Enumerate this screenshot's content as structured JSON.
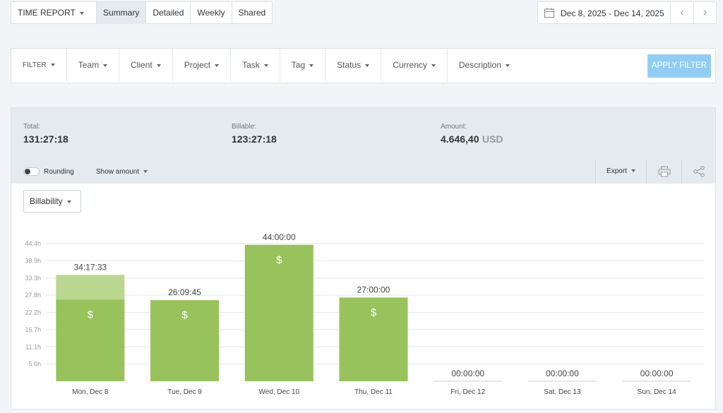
{
  "tabs": {
    "report": "TIME REPORT",
    "items": [
      "Summary",
      "Detailed",
      "Weekly",
      "Shared"
    ]
  },
  "date_range": "Dec 8, 2025 - Dec 14, 2025",
  "filters": {
    "label": "FILTER",
    "items": [
      "Team",
      "Client",
      "Project",
      "Task",
      "Tag",
      "Status",
      "Currency",
      "Description"
    ],
    "apply": "APPLY FILTER"
  },
  "summary": {
    "total_label": "Total:",
    "total": "131:27:18",
    "billable_label": "Billable:",
    "billable": "123:27:18",
    "amount_label": "Amount:",
    "amount": "4.646,40",
    "currency": "USD"
  },
  "toolbar": {
    "rounding": "Rounding",
    "show_amount": "Show amount",
    "export": "Export"
  },
  "group_by": "Billability",
  "chart_data": {
    "type": "stacked-bar",
    "categories": [
      "Mon, Dec 8",
      "Tue, Dec 9",
      "Wed, Dec 10",
      "Thu, Dec 11",
      "Fri, Dec 12",
      "Sat, Dec 13",
      "Sun, Dec 14"
    ],
    "series": [
      {
        "color": "#97c25c",
        "values": [
          26.2925,
          26.1625,
          44,
          27,
          0,
          0,
          0
        ]
      },
      {
        "color": "#b9d78e",
        "values": [
          8,
          0,
          0,
          0,
          0,
          0,
          0
        ]
      }
    ],
    "totals": {
      "values": [
        34.2925,
        26.1625,
        44,
        27,
        0,
        0,
        0
      ],
      "value_labels": [
        "34:17:33",
        "26:09:45",
        "44:00:00",
        "27:00:00",
        "00:00:00",
        "00:00:00",
        "00:00:00"
      ]
    },
    "billable_symbol": "$",
    "ylim": [
      0,
      44.4
    ],
    "yticks": [
      {
        "value": 5.55,
        "label": "5.6h"
      },
      {
        "value": 11.1,
        "label": "11.1h"
      },
      {
        "value": 16.65,
        "label": "16.7h"
      },
      {
        "value": 22.2,
        "label": "22.2h"
      },
      {
        "value": 27.75,
        "label": "27.8h"
      },
      {
        "value": 33.3,
        "label": "33.3h"
      },
      {
        "value": 38.85,
        "label": "38.9h"
      },
      {
        "value": 44.4,
        "label": "44.4h"
      }
    ],
    "grid": true
  }
}
